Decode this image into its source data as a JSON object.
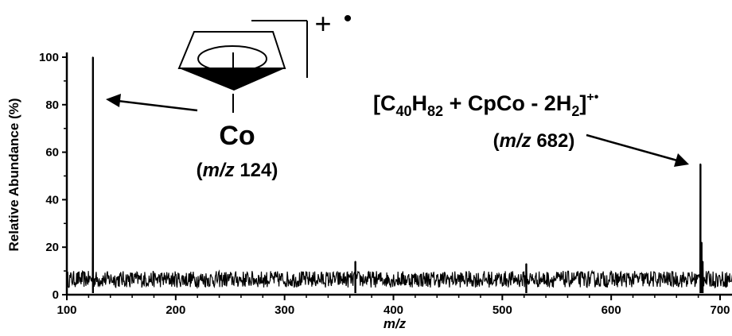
{
  "chart_data": {
    "type": "line",
    "xlabel": "m/z",
    "ylabel": "Relative Abundance  (%)",
    "xlim": [
      100,
      720
    ],
    "ylim": [
      0,
      100
    ],
    "x_ticks": [
      "100",
      "200",
      "300",
      "400",
      "500",
      "600",
      "700"
    ],
    "y_ticks": [
      "0",
      "20",
      "40",
      "60",
      "80",
      "100"
    ],
    "grid": false,
    "series": [
      {
        "baseline_range": [
          3,
          10
        ],
        "peaks": [
          {
            "x": 124,
            "y": 100
          },
          {
            "x": 682,
            "y": 55
          },
          {
            "x": 683,
            "y": 22
          },
          {
            "x": 684,
            "y": 14
          },
          {
            "x": 365,
            "y": 14
          },
          {
            "x": 522,
            "y": 13
          }
        ]
      }
    ],
    "annotations": {
      "co_label": "Co",
      "co_mz_label": [
        "(",
        "m/z",
        " 124)"
      ],
      "charge_plus": "+",
      "charge_dot": "•",
      "formula": [
        "[C",
        "40",
        "H",
        "82",
        " + CpCo - 2H",
        "2",
        "]",
        "+•"
      ],
      "formula_mz_label": [
        "(",
        "m/z",
        " 682)"
      ]
    }
  }
}
